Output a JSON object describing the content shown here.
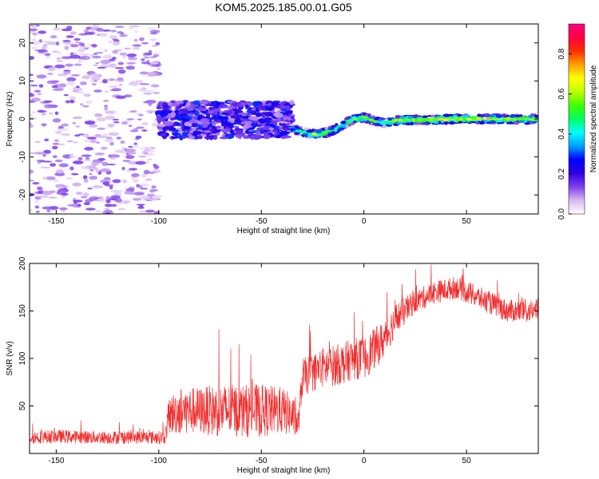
{
  "title": "KOM5.2025.185.00.01.G05",
  "chart_data": [
    {
      "type": "heatmap",
      "xlabel": "Height of straight line (km)",
      "ylabel": "Frequency (Hz)",
      "xlim": [
        -163,
        85
      ],
      "ylim": [
        -25,
        25
      ],
      "xticks": [
        "-150",
        "-100",
        "-50",
        "0",
        "50"
      ],
      "xtick_values": [
        -150,
        -100,
        -50,
        0,
        50
      ],
      "yticks": [
        "20",
        "10",
        "0",
        "-10",
        "-20"
      ],
      "ytick_values": [
        20,
        10,
        0,
        -10,
        -20
      ],
      "colorbar": {
        "label": "Normalized spectral amplitude",
        "range": [
          0,
          0.95
        ],
        "ticks": [
          "0.0",
          "0.2",
          "0.4",
          "0.6",
          "0.8"
        ],
        "tick_values": [
          0,
          0.2,
          0.4,
          0.6,
          0.8
        ],
        "colormap": [
          "#ffffff",
          "#d8b8f0",
          "#8040f0",
          "#3000e0",
          "#0000ff",
          "#00a0ff",
          "#00ffff",
          "#00ff60",
          "#40ff00",
          "#c0ff00",
          "#ffff00",
          "#ffa000",
          "#ff3000",
          "#ff0040",
          "#ff0080"
        ]
      },
      "ridge": {
        "x": [
          -100,
          -90,
          -80,
          -70,
          -60,
          -50,
          -40,
          -35,
          -30,
          -25,
          -20,
          -15,
          -10,
          -5,
          0,
          5,
          10,
          15,
          20,
          30,
          40,
          50,
          60,
          70,
          80,
          85
        ],
        "freq": [
          -1.5,
          -1,
          -1,
          -1,
          -1.2,
          -1,
          -1.5,
          -2.5,
          -3.5,
          -4,
          -3.8,
          -3,
          -1.5,
          0,
          0.5,
          -0.5,
          -1,
          -0.5,
          -0.3,
          -0.2,
          -0.1,
          0,
          0,
          0,
          -0.1,
          0
        ],
        "amplitude": [
          0.3,
          0.3,
          0.3,
          0.3,
          0.3,
          0.35,
          0.3,
          0.35,
          0.45,
          0.55,
          0.6,
          0.5,
          0.5,
          0.6,
          0.6,
          0.55,
          0.5,
          0.65,
          0.7,
          0.65,
          0.7,
          0.65,
          0.7,
          0.65,
          0.65,
          0.6
        ]
      }
    },
    {
      "type": "line",
      "xlabel": "Height of straight line (km)",
      "ylabel": "SNR (v/v)",
      "xlim": [
        -163,
        85
      ],
      "ylim": [
        0,
        200
      ],
      "xticks": [
        "-150",
        "-100",
        "-50",
        "0",
        "50"
      ],
      "xtick_values": [
        -150,
        -100,
        -50,
        0,
        50
      ],
      "yticks": [
        "200",
        "150",
        "100",
        "50"
      ],
      "ytick_values": [
        200,
        150,
        100,
        50
      ],
      "color": "#f03030",
      "envelope_x": [
        -163,
        -150,
        -130,
        -110,
        -97,
        -95,
        -90,
        -80,
        -70,
        -60,
        -50,
        -40,
        -35,
        -32,
        -30,
        -25,
        -20,
        -10,
        -5,
        0,
        5,
        10,
        15,
        20,
        25,
        30,
        35,
        40,
        45,
        50,
        55,
        60,
        70,
        80,
        85
      ],
      "envelope_mean": [
        17,
        18,
        17,
        17,
        17,
        40,
        45,
        45,
        45,
        45,
        45,
        45,
        40,
        30,
        80,
        85,
        90,
        95,
        100,
        100,
        110,
        120,
        140,
        150,
        160,
        165,
        170,
        172,
        175,
        170,
        165,
        160,
        150,
        150,
        150
      ],
      "envelope_spread": [
        7,
        7,
        7,
        7,
        7,
        20,
        25,
        25,
        28,
        28,
        28,
        25,
        22,
        15,
        20,
        20,
        22,
        22,
        22,
        22,
        22,
        20,
        18,
        15,
        12,
        12,
        12,
        12,
        12,
        12,
        12,
        12,
        12,
        12,
        12
      ]
    }
  ]
}
